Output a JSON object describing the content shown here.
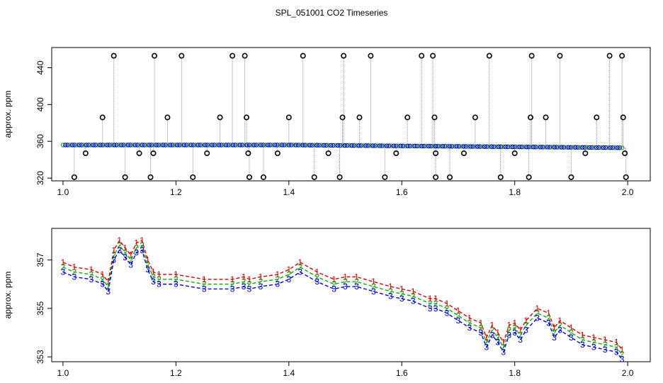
{
  "title": "SPL_051001  CO2 Timeseries",
  "colors": {
    "series1": "#d40000",
    "series2": "#1aa01a",
    "series3": "#0000cc",
    "raw": "#000000",
    "guide": "#888888"
  },
  "chart_data": [
    {
      "type": "scatter",
      "panel": "top",
      "ylabel": "approx. ppm",
      "xlabel": "",
      "xlim": [
        0.98,
        2.04
      ],
      "ylim": [
        317,
        462
      ],
      "x_ticks": [
        1.0,
        1.2,
        1.4,
        1.6,
        1.8,
        2.0
      ],
      "x_tick_labels": [
        "1.0",
        "1.2",
        "1.4",
        "1.6",
        "1.8",
        "2.0"
      ],
      "y_ticks": [
        320,
        360,
        400,
        440
      ],
      "y_tick_labels": [
        "320",
        "360",
        "400",
        "440"
      ],
      "baseline": {
        "x": [
          1.0,
          1.2,
          1.4,
          1.6,
          1.8,
          1.99
        ],
        "y": [
          356,
          356,
          356,
          355,
          354,
          353
        ]
      },
      "outliers": {
        "x": [
          1.02,
          1.04,
          1.07,
          1.09,
          1.11,
          1.135,
          1.155,
          1.16,
          1.162,
          1.185,
          1.21,
          1.23,
          1.255,
          1.278,
          1.3,
          1.322,
          1.325,
          1.328,
          1.33,
          1.355,
          1.38,
          1.4,
          1.445,
          1.425,
          1.47,
          1.49,
          1.495,
          1.497,
          1.525,
          1.545,
          1.57,
          1.59,
          1.61,
          1.635,
          1.655,
          1.658,
          1.66,
          1.66,
          1.685,
          1.71,
          1.73,
          1.755,
          1.775,
          1.8,
          1.825,
          1.828,
          1.83,
          1.855,
          1.88,
          1.9,
          1.925,
          1.945,
          1.968,
          1.99,
          1.992,
          1.995,
          1.997
        ],
        "y": [
          321,
          347,
          386,
          453,
          321,
          347,
          321,
          347,
          453,
          386,
          453,
          321,
          347,
          386,
          453,
          453,
          386,
          347,
          321,
          321,
          347,
          386,
          321,
          453,
          347,
          321,
          386,
          453,
          386,
          453,
          321,
          347,
          386,
          453,
          453,
          386,
          321,
          347,
          321,
          347,
          386,
          453,
          321,
          347,
          321,
          386,
          453,
          386,
          453,
          321,
          347,
          386,
          453,
          453,
          386,
          347,
          321
        ]
      }
    },
    {
      "type": "line",
      "panel": "bottom",
      "ylabel": "approx. ppm",
      "xlabel": "",
      "xlim": [
        0.98,
        2.04
      ],
      "ylim": [
        352.8,
        358.3
      ],
      "x_ticks": [
        1.0,
        1.2,
        1.4,
        1.6,
        1.8,
        2.0
      ],
      "x_tick_labels": [
        "1.0",
        "1.2",
        "1.4",
        "1.6",
        "1.8",
        "2.0"
      ],
      "y_ticks": [
        353,
        355,
        357
      ],
      "y_tick_labels": [
        "353",
        "355",
        "357"
      ],
      "series": [
        {
          "name": "1",
          "marker": "1",
          "offset": 0.2,
          "x": [
            1.0,
            1.02,
            1.05,
            1.07,
            1.08,
            1.09,
            1.1,
            1.11,
            1.12,
            1.13,
            1.14,
            1.15,
            1.16,
            1.17,
            1.2,
            1.25,
            1.3,
            1.32,
            1.33,
            1.35,
            1.38,
            1.4,
            1.42,
            1.45,
            1.48,
            1.5,
            1.52,
            1.55,
            1.58,
            1.6,
            1.62,
            1.65,
            1.66,
            1.68,
            1.7,
            1.72,
            1.74,
            1.75,
            1.76,
            1.77,
            1.78,
            1.79,
            1.8,
            1.81,
            1.82,
            1.84,
            1.86,
            1.87,
            1.88,
            1.9,
            1.92,
            1.94,
            1.96,
            1.98,
            1.99
          ],
          "y": [
            356.7,
            356.5,
            356.4,
            356.2,
            355.9,
            357.2,
            357.6,
            357.3,
            357.0,
            357.5,
            357.6,
            356.8,
            356.3,
            356.2,
            356.2,
            356.0,
            356.0,
            356.1,
            356.0,
            356.1,
            356.2,
            356.4,
            356.7,
            356.3,
            356.0,
            356.1,
            356.1,
            355.9,
            355.7,
            355.6,
            355.5,
            355.2,
            355.2,
            355.0,
            354.7,
            354.4,
            354.2,
            353.6,
            354.1,
            353.8,
            353.4,
            354.1,
            354.2,
            353.9,
            354.3,
            354.8,
            354.6,
            354.0,
            354.3,
            354.0,
            353.7,
            353.6,
            353.5,
            353.4,
            353.1
          ]
        },
        {
          "name": "2",
          "marker": "2",
          "offset": 0.0,
          "x": [
            1.0,
            1.02,
            1.05,
            1.07,
            1.08,
            1.09,
            1.1,
            1.11,
            1.12,
            1.13,
            1.14,
            1.15,
            1.16,
            1.17,
            1.2,
            1.25,
            1.3,
            1.32,
            1.33,
            1.35,
            1.38,
            1.4,
            1.42,
            1.45,
            1.48,
            1.5,
            1.52,
            1.55,
            1.58,
            1.6,
            1.62,
            1.65,
            1.66,
            1.68,
            1.7,
            1.72,
            1.74,
            1.75,
            1.76,
            1.77,
            1.78,
            1.79,
            1.8,
            1.81,
            1.82,
            1.84,
            1.86,
            1.87,
            1.88,
            1.9,
            1.92,
            1.94,
            1.96,
            1.98,
            1.99
          ],
          "y": [
            356.7,
            356.5,
            356.4,
            356.2,
            355.9,
            357.2,
            357.6,
            357.3,
            357.0,
            357.5,
            357.6,
            356.8,
            356.3,
            356.2,
            356.2,
            356.0,
            356.0,
            356.1,
            356.0,
            356.1,
            356.2,
            356.4,
            356.7,
            356.3,
            356.0,
            356.1,
            356.1,
            355.9,
            355.7,
            355.6,
            355.5,
            355.2,
            355.2,
            355.0,
            354.7,
            354.4,
            354.2,
            353.6,
            354.1,
            353.8,
            353.4,
            354.1,
            354.2,
            353.9,
            354.3,
            354.8,
            354.6,
            354.0,
            354.3,
            354.0,
            353.7,
            353.6,
            353.5,
            353.4,
            353.1
          ]
        },
        {
          "name": "3",
          "marker": "3",
          "offset": -0.2,
          "x": [
            1.0,
            1.02,
            1.05,
            1.07,
            1.08,
            1.09,
            1.1,
            1.11,
            1.12,
            1.13,
            1.14,
            1.15,
            1.16,
            1.17,
            1.2,
            1.25,
            1.3,
            1.32,
            1.33,
            1.35,
            1.38,
            1.4,
            1.42,
            1.45,
            1.48,
            1.5,
            1.52,
            1.55,
            1.58,
            1.6,
            1.62,
            1.65,
            1.66,
            1.68,
            1.7,
            1.72,
            1.74,
            1.75,
            1.76,
            1.77,
            1.78,
            1.79,
            1.8,
            1.81,
            1.82,
            1.84,
            1.86,
            1.87,
            1.88,
            1.9,
            1.92,
            1.94,
            1.96,
            1.98,
            1.99
          ],
          "y": [
            356.7,
            356.5,
            356.4,
            356.2,
            355.9,
            357.2,
            357.6,
            357.3,
            357.0,
            357.5,
            357.6,
            356.8,
            356.3,
            356.2,
            356.2,
            356.0,
            356.0,
            356.1,
            356.0,
            356.1,
            356.2,
            356.4,
            356.7,
            356.3,
            356.0,
            356.1,
            356.1,
            355.9,
            355.7,
            355.6,
            355.5,
            355.2,
            355.2,
            355.0,
            354.7,
            354.4,
            354.2,
            353.6,
            354.1,
            353.8,
            353.4,
            354.1,
            354.2,
            353.9,
            354.3,
            354.8,
            354.6,
            354.0,
            354.3,
            354.0,
            353.7,
            353.6,
            353.5,
            353.4,
            353.1
          ]
        }
      ]
    }
  ]
}
